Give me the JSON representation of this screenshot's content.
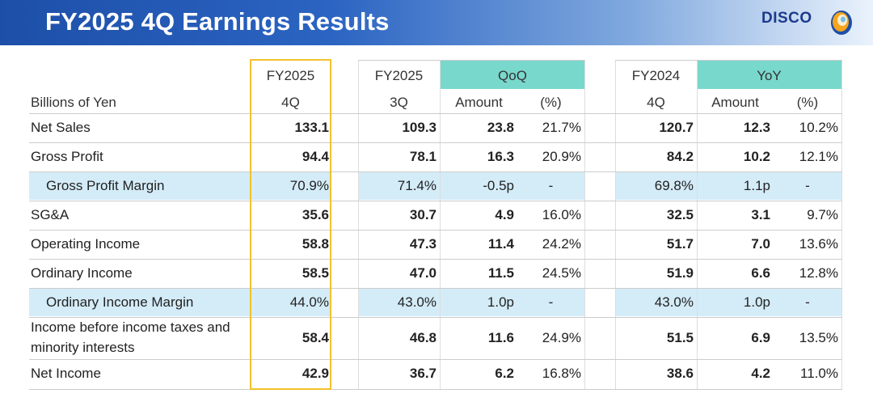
{
  "title": "FY2025 4Q Earnings Results",
  "logo": "DISCO",
  "unit_label": "Billions of Yen",
  "headers": {
    "fy2025_4q": [
      "FY2025",
      "4Q"
    ],
    "fy2025_3q": [
      "FY2025",
      "3Q"
    ],
    "qoq": "QoQ",
    "fy2024_4q": [
      "FY2024",
      "4Q"
    ],
    "yoy": "YoY",
    "amount": "Amount",
    "pct": "(%)"
  },
  "rows": [
    {
      "label": "Net Sales",
      "q4": "133.1",
      "q3": "109.3",
      "qoq_amt": "23.8",
      "qoq_pct": "21.7%",
      "py": "120.7",
      "yoy_amt": "12.3",
      "yoy_pct": "10.2%"
    },
    {
      "label": "Gross Profit",
      "q4": "94.4",
      "q3": "78.1",
      "qoq_amt": "16.3",
      "qoq_pct": "20.9%",
      "py": "84.2",
      "yoy_amt": "10.2",
      "yoy_pct": "12.1%"
    },
    {
      "label": "Gross Profit Margin",
      "q4": "70.9%",
      "q3": "71.4%",
      "qoq_amt": "-0.5p",
      "qoq_pct": "-",
      "py": "69.8%",
      "yoy_amt": "1.1p",
      "yoy_pct": "-"
    },
    {
      "label": "SG&A",
      "q4": "35.6",
      "q3": "30.7",
      "qoq_amt": "4.9",
      "qoq_pct": "16.0%",
      "py": "32.5",
      "yoy_amt": "3.1",
      "yoy_pct": "9.7%"
    },
    {
      "label": "Operating Income",
      "q4": "58.8",
      "q3": "47.3",
      "qoq_amt": "11.4",
      "qoq_pct": "24.2%",
      "py": "51.7",
      "yoy_amt": "7.0",
      "yoy_pct": "13.6%"
    },
    {
      "label": "Ordinary Income",
      "q4": "58.5",
      "q3": "47.0",
      "qoq_amt": "11.5",
      "qoq_pct": "24.5%",
      "py": "51.9",
      "yoy_amt": "6.6",
      "yoy_pct": "12.8%"
    },
    {
      "label": "Ordinary Income Margin",
      "q4": "44.0%",
      "q3": "43.0%",
      "qoq_amt": "1.0p",
      "qoq_pct": "-",
      "py": "43.0%",
      "yoy_amt": "1.0p",
      "yoy_pct": "-"
    },
    {
      "label": "Income before income taxes and",
      "label2": "minority interests",
      "q4": "58.4",
      "q3": "46.8",
      "qoq_amt": "11.6",
      "qoq_pct": "24.9%",
      "py": "51.5",
      "yoy_amt": "6.9",
      "yoy_pct": "13.5%"
    },
    {
      "label": "Net Income",
      "q4": "42.9",
      "q3": "36.7",
      "qoq_amt": "6.2",
      "qoq_pct": "16.8%",
      "py": "38.6",
      "yoy_amt": "4.2",
      "yoy_pct": "11.0%"
    }
  ]
}
